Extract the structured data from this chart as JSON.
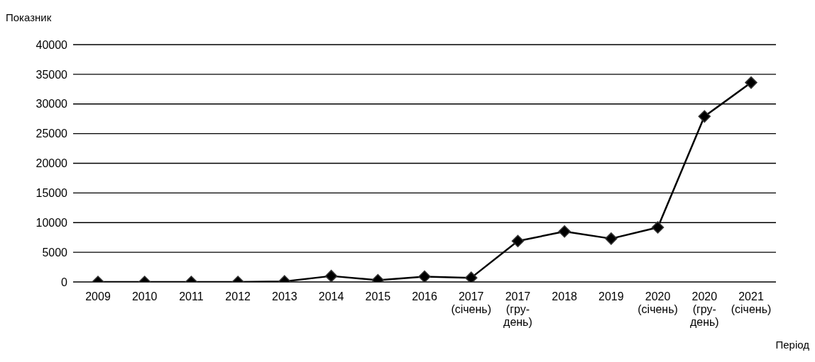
{
  "chart_data": {
    "type": "line",
    "ylabel": "Показник",
    "xlabel": "Період",
    "categories": [
      "2009",
      "2010",
      "2011",
      "2012",
      "2013",
      "2014",
      "2015",
      "2016",
      "2017\n(січень)",
      "2017\n(гру-\nдень)",
      "2018",
      "2019",
      "2020\n(січень)",
      "2020\n(гру-\nдень)",
      "2021\n(січень)"
    ],
    "series": [
      {
        "color": "#000000",
        "values": [
          0,
          0,
          0,
          0,
          100,
          1000,
          300,
          900,
          700,
          6900,
          8500,
          7300,
          9200,
          27900,
          33600
        ]
      }
    ],
    "ylim": [
      0,
      40000
    ],
    "yticks": [
      0,
      5000,
      10000,
      15000,
      20000,
      25000,
      30000,
      35000,
      40000
    ],
    "grid": "y",
    "marker": "diamond",
    "line_style": "solid",
    "legend": false
  }
}
